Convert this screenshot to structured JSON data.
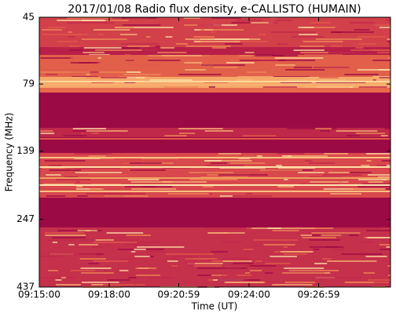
{
  "chart_data": {
    "type": "spectrogram",
    "title": "2017/01/08  Radio flux density, e-CALLISTO (HUMAIN)",
    "x_label": "Time (UT)",
    "y_label": "Frequency (MHz)",
    "xlim": [
      33300,
      34204
    ],
    "xticks": [
      {
        "value": 33300,
        "label": "09:15:00"
      },
      {
        "value": 33480,
        "label": "09:18:00"
      },
      {
        "value": 33659,
        "label": "09:20:59"
      },
      {
        "value": 33840,
        "label": "09:24:00"
      },
      {
        "value": 34019,
        "label": "09:26:59"
      }
    ],
    "ylim": [
      437,
      45
    ],
    "yticks": [
      45,
      79,
      139,
      247,
      437
    ],
    "y_log": true
  }
}
